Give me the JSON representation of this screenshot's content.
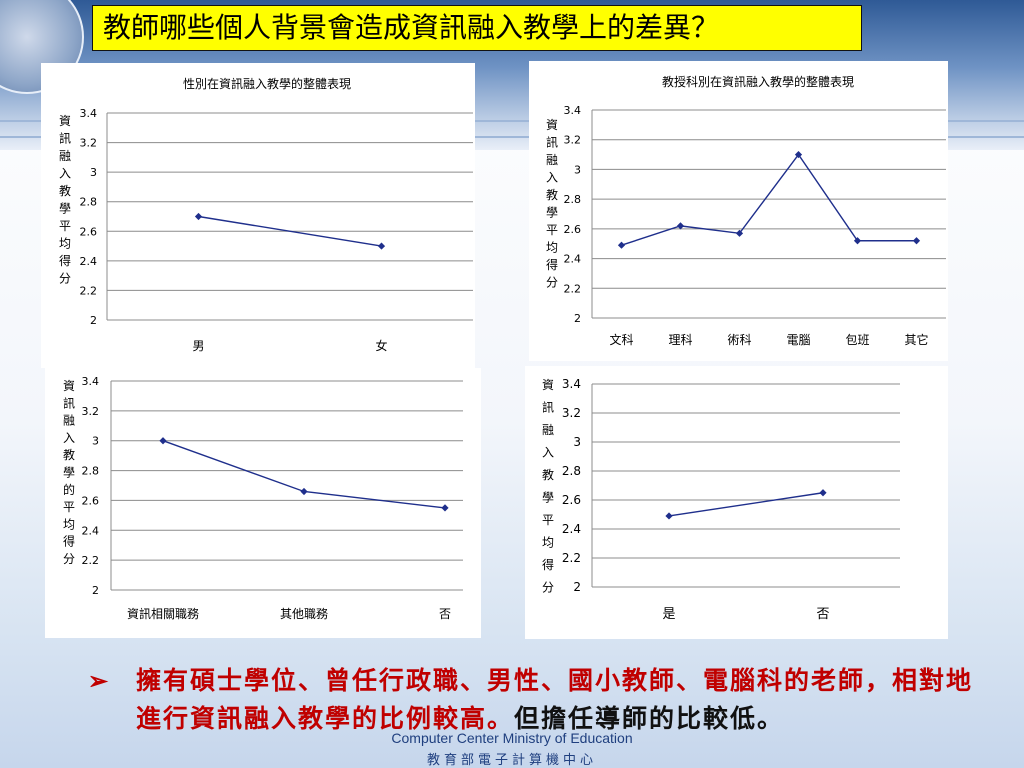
{
  "slide": {
    "title": "教師哪些個人背景會造成資訊融入教學上的差異？",
    "bullet_red": "擁有碩士學位、曾任行政職、男性、國小教師、電腦科的老師，相對地進行資訊融入教學的比例較高。",
    "bullet_dark": "但擔任導師的比較低。",
    "footer_en": "Computer Center Ministry of Education",
    "footer_zh": "教育部電子計算機中心",
    "line_color": "#1f2f8c"
  },
  "chart_data": [
    {
      "type": "line",
      "title": "性別在資訊融入教學的整體表現",
      "ylabel": "資訊融入教學平均得分",
      "categories": [
        "男",
        "女"
      ],
      "values": [
        2.7,
        2.5
      ],
      "ylim": [
        2,
        3.4
      ],
      "yticks": [
        "3.4",
        "3.2",
        "3",
        "2.8",
        "2.6",
        "2.4",
        "2.2",
        "2"
      ],
      "grid": true
    },
    {
      "type": "line",
      "title": "教授科別在資訊融入教學的整體表現",
      "ylabel": "資訊融入教學平均得分",
      "categories": [
        "文科",
        "理科",
        "術科",
        "電腦",
        "包班",
        "其它"
      ],
      "values": [
        2.49,
        2.62,
        2.57,
        3.1,
        2.52,
        2.52
      ],
      "ylim": [
        2,
        3.4
      ],
      "yticks": [
        "3.4",
        "3.2",
        "3",
        "2.8",
        "2.6",
        "2.4",
        "2.2",
        "2"
      ],
      "grid": true
    },
    {
      "type": "line",
      "title": "",
      "ylabel": "資訊融入教學的平均得分",
      "categories": [
        "資訊相關職務",
        "其他職務",
        "否"
      ],
      "values": [
        3.0,
        2.66,
        2.55
      ],
      "ylim": [
        2,
        3.4
      ],
      "yticks": [
        "3.4",
        "3.2",
        "3",
        "2.8",
        "2.6",
        "2.4",
        "2.2",
        "2"
      ],
      "grid": true
    },
    {
      "type": "line",
      "title": "",
      "ylabel": "資訊融入教學平均得分",
      "categories": [
        "是",
        "否"
      ],
      "values": [
        2.49,
        2.65
      ],
      "ylim": [
        2,
        3.4
      ],
      "yticks": [
        "3.4",
        "3.2",
        "3",
        "2.8",
        "2.6",
        "2.4",
        "2.2",
        "2"
      ],
      "grid": true
    }
  ]
}
